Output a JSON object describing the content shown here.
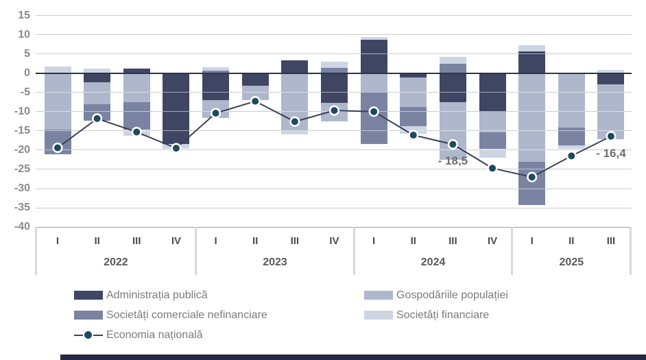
{
  "chart_data": {
    "type": "bar",
    "subtype": "stacked-bars-with-line",
    "title": "",
    "grid": true,
    "legend_position": "bottom",
    "ylim": [
      -40,
      15
    ],
    "y_ticks": [
      15,
      10,
      5,
      0,
      -5,
      -10,
      -15,
      -20,
      -25,
      -30,
      -35,
      -40
    ],
    "year_groups": [
      {
        "year": "2022",
        "quarters": [
          "I",
          "II",
          "III",
          "IV"
        ]
      },
      {
        "year": "2023",
        "quarters": [
          "I",
          "II",
          "III",
          "IV"
        ]
      },
      {
        "year": "2024",
        "quarters": [
          "I",
          "II",
          "III",
          "IV"
        ]
      },
      {
        "year": "2025",
        "quarters": [
          "I",
          "II",
          "III"
        ]
      }
    ],
    "series": [
      {
        "name": "Administrația publică",
        "color": "#3f4663",
        "values": [
          0,
          -2.3,
          1.2,
          -18.4,
          -7.0,
          -3.3,
          3.4,
          -7.8,
          8.6,
          -1.1,
          -7.6,
          -10.1,
          5.7,
          0,
          -2.9
        ]
      },
      {
        "name": "Gospodăriile populației",
        "color": "#aeb7cb",
        "values": [
          -14.7,
          -5.8,
          -7.5,
          0,
          -4.7,
          -3.7,
          -15.0,
          -4.8,
          -4.9,
          -7.7,
          -15.0,
          -5.3,
          -23.0,
          -14.1,
          -14.3
        ]
      },
      {
        "name": "Societăți comerciale nefinanciare",
        "color": "#7a84a2",
        "values": [
          -6.4,
          -4.2,
          -7.2,
          0,
          0.7,
          0,
          0,
          1.3,
          -13.6,
          -4.9,
          2.4,
          -4.3,
          -11.2,
          -4.7,
          0
        ]
      },
      {
        "name": "Societăți financiare",
        "color": "#cdd5e3",
        "values": [
          1.7,
          1.2,
          -1.6,
          -1.2,
          0.9,
          0,
          -1.0,
          1.7,
          0.7,
          -2.1,
          1.9,
          -2.2,
          1.6,
          -0.8,
          0.8
        ]
      }
    ],
    "line_series": {
      "name": "Economia națională",
      "line_color": "#3a4158",
      "marker_color": "#1c4a5e",
      "values": [
        -19.4,
        -11.8,
        -15.3,
        -19.5,
        -10.4,
        -7.3,
        -12.6,
        -9.7,
        -10.0,
        -16.1,
        -18.5,
        -24.7,
        -27.0,
        -21.5,
        -16.4
      ]
    },
    "annotations": [
      {
        "text": "- 18,5",
        "quarter_index": 10
      },
      {
        "text": "- 16,4",
        "quarter_index": 14
      }
    ]
  },
  "footer_bar": {
    "color": "#232940"
  }
}
